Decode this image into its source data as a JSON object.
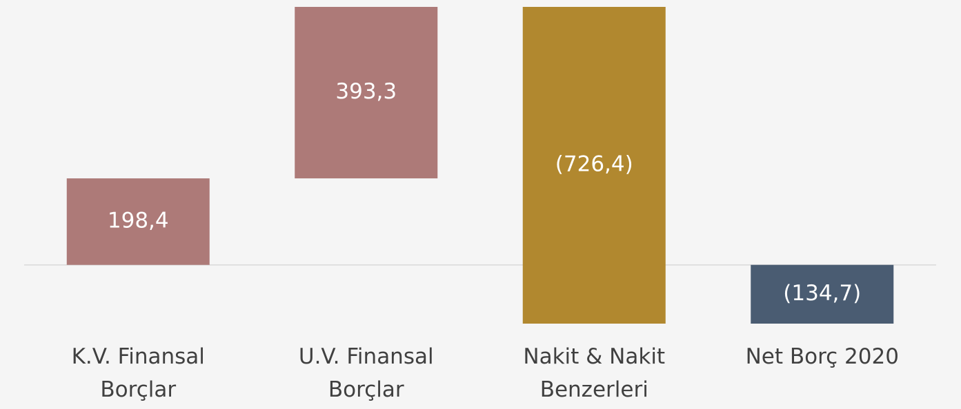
{
  "chart_data": {
    "type": "waterfall",
    "categories": [
      "K.V. Finansal Borçlar",
      "U.V. Finansal Borçlar",
      "Nakit & Nakit Benzerleri",
      "Net Borç 2020"
    ],
    "values": [
      198.4,
      393.3,
      -726.4,
      -134.7
    ],
    "value_labels": [
      "198,4",
      "393,3",
      "(726,4)",
      "(134,7)"
    ],
    "colors": [
      "#ad7a78",
      "#ad7a78",
      "#b1882f",
      "#4a5c72"
    ],
    "last_is_total": true
  }
}
